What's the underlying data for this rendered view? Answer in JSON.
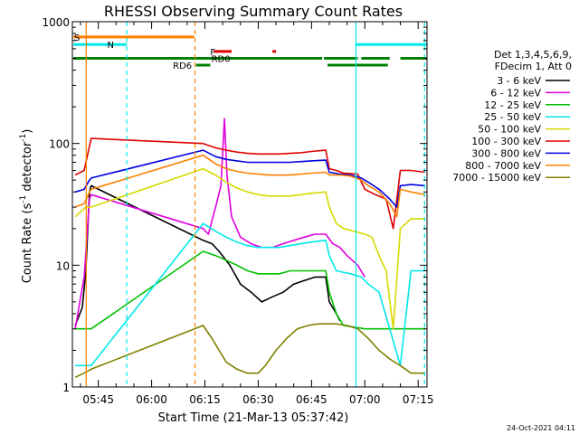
{
  "chart_data": {
    "type": "line",
    "title": "RHESSI Observing Summary Count Rates",
    "xlabel": "Start Time (21-Mar-13 05:37:42)",
    "ylabel_parts": [
      "Count Rate (s",
      "-1",
      " detector",
      "-1",
      ")"
    ],
    "y_scale": "log",
    "ylim": [
      1,
      1000
    ],
    "xlim_minutes": [
      37.7,
      137.5
    ],
    "x_ticks": [
      {
        "m": 45,
        "label": "05:45"
      },
      {
        "m": 60,
        "label": "06:00"
      },
      {
        "m": 75,
        "label": "06:15"
      },
      {
        "m": 90,
        "label": "06:30"
      },
      {
        "m": 105,
        "label": "06:45"
      },
      {
        "m": 120,
        "label": "07:00"
      },
      {
        "m": 135,
        "label": "07:15"
      }
    ],
    "y_ticks": [
      {
        "v": 1,
        "label": "1"
      },
      {
        "v": 10,
        "label": "10"
      },
      {
        "v": 100,
        "label": "100"
      },
      {
        "v": 1000,
        "label": "1000"
      }
    ],
    "legend_header": [
      "Det 1,3,4,5,6,9,",
      "FDecim 1, Att 0"
    ],
    "series": [
      {
        "name": "3 - 6 keV",
        "color": "#000000",
        "values": [
          [
            38.5,
            3.2
          ],
          [
            40.5,
            4.5
          ],
          [
            41.5,
            9
          ],
          [
            42.5,
            40
          ],
          [
            43,
            45
          ],
          [
            74.5,
            16
          ],
          [
            77,
            15
          ],
          [
            79,
            13
          ],
          [
            82,
            10
          ],
          [
            85,
            7
          ],
          [
            88,
            6
          ],
          [
            91,
            5
          ],
          [
            94,
            5.5
          ],
          [
            97,
            6
          ],
          [
            100,
            7
          ],
          [
            103,
            7.5
          ],
          [
            106,
            8
          ],
          [
            109,
            8
          ],
          [
            110,
            5
          ],
          [
            112,
            4
          ],
          [
            113,
            3.5
          ]
        ]
      },
      {
        "name": "6 - 12 keV",
        "color": "#e000e0",
        "values": [
          [
            38.5,
            3
          ],
          [
            41,
            8
          ],
          [
            42.5,
            35
          ],
          [
            43,
            38
          ],
          [
            74.5,
            20
          ],
          [
            76,
            18
          ],
          [
            78,
            30
          ],
          [
            79.5,
            45
          ],
          [
            80.5,
            160
          ],
          [
            81.2,
            55
          ],
          [
            82.5,
            25
          ],
          [
            85,
            17
          ],
          [
            88,
            15
          ],
          [
            91,
            14
          ],
          [
            94,
            14
          ],
          [
            97,
            15
          ],
          [
            100,
            16
          ],
          [
            103,
            17
          ],
          [
            106,
            18
          ],
          [
            109,
            18
          ],
          [
            111,
            15
          ],
          [
            113,
            14
          ],
          [
            115,
            12
          ],
          [
            118,
            10
          ],
          [
            120,
            8
          ]
        ]
      },
      {
        "name": "12 - 25 keV",
        "color": "#00c000",
        "values": [
          [
            38.5,
            3
          ],
          [
            41.5,
            3
          ],
          [
            43,
            3
          ],
          [
            74.5,
            13
          ],
          [
            78,
            12
          ],
          [
            81,
            11
          ],
          [
            84,
            10
          ],
          [
            87,
            9
          ],
          [
            90,
            8.5
          ],
          [
            93,
            8.5
          ],
          [
            96,
            8.5
          ],
          [
            99,
            9
          ],
          [
            102,
            9
          ],
          [
            105,
            9
          ],
          [
            109,
            9
          ],
          [
            110,
            6
          ],
          [
            112,
            4
          ],
          [
            114,
            3.2
          ],
          [
            120,
            3
          ],
          [
            125,
            3
          ],
          [
            130,
            3
          ],
          [
            137,
            3
          ]
        ]
      },
      {
        "name": "25 - 50 keV",
        "color": "#00e8e8",
        "values": [
          [
            38.5,
            1.5
          ],
          [
            41.5,
            1.5
          ],
          [
            43,
            1.5
          ],
          [
            74.5,
            22
          ],
          [
            78,
            19
          ],
          [
            81,
            17
          ],
          [
            84,
            15.5
          ],
          [
            87,
            14.5
          ],
          [
            90,
            14
          ],
          [
            93,
            14
          ],
          [
            96,
            14
          ],
          [
            99,
            14.5
          ],
          [
            102,
            15
          ],
          [
            105,
            15.5
          ],
          [
            109,
            16
          ],
          [
            110,
            12
          ],
          [
            112,
            9
          ],
          [
            116,
            8.5
          ],
          [
            119,
            8
          ],
          [
            121,
            7
          ],
          [
            124,
            6
          ],
          [
            127,
            3
          ],
          [
            130,
            1.5
          ],
          [
            133,
            9
          ],
          [
            137,
            9
          ]
        ]
      },
      {
        "name": "50 - 100 keV",
        "color": "#d8d800",
        "values": [
          [
            38.5,
            25
          ],
          [
            41.5,
            30
          ],
          [
            43,
            30
          ],
          [
            74.5,
            62
          ],
          [
            78,
            55
          ],
          [
            81,
            48
          ],
          [
            84,
            43
          ],
          [
            87,
            40
          ],
          [
            90,
            38
          ],
          [
            93,
            37
          ],
          [
            96,
            37
          ],
          [
            99,
            37
          ],
          [
            102,
            38
          ],
          [
            105,
            39
          ],
          [
            109,
            40
          ],
          [
            110,
            30
          ],
          [
            112,
            22
          ],
          [
            114,
            20
          ],
          [
            117,
            19
          ],
          [
            120,
            18
          ],
          [
            122,
            17
          ],
          [
            124,
            12
          ],
          [
            126,
            9
          ],
          [
            128,
            3
          ],
          [
            130,
            20
          ],
          [
            133,
            24
          ],
          [
            137,
            24
          ]
        ]
      },
      {
        "name": "100 - 300 keV",
        "color": "#e00000",
        "values": [
          [
            38.5,
            55
          ],
          [
            41,
            60
          ],
          [
            42.5,
            95
          ],
          [
            43,
            110
          ],
          [
            74.5,
            100
          ],
          [
            78,
            92
          ],
          [
            81,
            88
          ],
          [
            84,
            85
          ],
          [
            87,
            83
          ],
          [
            90,
            82
          ],
          [
            93,
            82
          ],
          [
            96,
            82
          ],
          [
            99,
            83
          ],
          [
            102,
            84
          ],
          [
            105,
            86
          ],
          [
            109,
            88
          ],
          [
            110,
            62
          ],
          [
            112,
            60
          ],
          [
            114,
            57
          ],
          [
            118,
            56
          ],
          [
            120,
            42
          ],
          [
            123,
            38
          ],
          [
            126,
            35
          ],
          [
            128,
            20
          ],
          [
            130,
            60
          ],
          [
            133,
            60
          ],
          [
            137,
            58
          ]
        ]
      },
      {
        "name": "300 - 800 keV",
        "color": "#0000e0",
        "values": [
          [
            38.5,
            40
          ],
          [
            41,
            42
          ],
          [
            42.5,
            50
          ],
          [
            43,
            52
          ],
          [
            74.5,
            88
          ],
          [
            78,
            78
          ],
          [
            81,
            74
          ],
          [
            84,
            72
          ],
          [
            87,
            70
          ],
          [
            90,
            70
          ],
          [
            93,
            70
          ],
          [
            96,
            70
          ],
          [
            99,
            70
          ],
          [
            102,
            71
          ],
          [
            105,
            72
          ],
          [
            109,
            73
          ],
          [
            110,
            58
          ],
          [
            113,
            56
          ],
          [
            116,
            55
          ],
          [
            119,
            52
          ],
          [
            121,
            48
          ],
          [
            124,
            42
          ],
          [
            127,
            35
          ],
          [
            129,
            30
          ],
          [
            130,
            45
          ],
          [
            133,
            46
          ],
          [
            137,
            45
          ]
        ]
      },
      {
        "name": "800 - 7000 keV",
        "color": "#ff8000",
        "values": [
          [
            38.5,
            30
          ],
          [
            41,
            32
          ],
          [
            42.5,
            40
          ],
          [
            43,
            42
          ],
          [
            74.5,
            80
          ],
          [
            78,
            68
          ],
          [
            81,
            62
          ],
          [
            84,
            59
          ],
          [
            87,
            57
          ],
          [
            90,
            56
          ],
          [
            93,
            55
          ],
          [
            96,
            55
          ],
          [
            99,
            55
          ],
          [
            102,
            56
          ],
          [
            105,
            57
          ],
          [
            109,
            58
          ],
          [
            110,
            55
          ],
          [
            113,
            55
          ],
          [
            116,
            54
          ],
          [
            119,
            50
          ],
          [
            121,
            45
          ],
          [
            124,
            40
          ],
          [
            127,
            32
          ],
          [
            129,
            25
          ],
          [
            130,
            42
          ],
          [
            133,
            40
          ],
          [
            137,
            38
          ]
        ]
      },
      {
        "name": "7000 - 15000 keV",
        "color": "#808000",
        "values": [
          [
            38.5,
            1.2
          ],
          [
            41,
            1.3
          ],
          [
            43,
            1.4
          ],
          [
            74.5,
            3.2
          ],
          [
            77,
            2.5
          ],
          [
            79,
            2
          ],
          [
            81,
            1.6
          ],
          [
            84,
            1.4
          ],
          [
            87,
            1.3
          ],
          [
            90,
            1.3
          ],
          [
            92,
            1.5
          ],
          [
            95,
            2
          ],
          [
            98,
            2.5
          ],
          [
            101,
            3
          ],
          [
            104,
            3.2
          ],
          [
            107,
            3.3
          ],
          [
            109,
            3.3
          ],
          [
            112,
            3.3
          ],
          [
            115,
            3.2
          ],
          [
            118,
            3
          ],
          [
            121,
            2.5
          ],
          [
            124,
            2
          ],
          [
            127,
            1.7
          ],
          [
            130,
            1.5
          ],
          [
            133,
            1.3
          ],
          [
            137,
            1.3
          ]
        ]
      }
    ],
    "flag_bars": [
      {
        "label": "S",
        "color": "#ff8000",
        "level": 750,
        "spans": [
          [
            38.0,
            72.0
          ]
        ],
        "label_m": 38.2
      },
      {
        "label": "N",
        "color": "#00e8e8",
        "level": 650,
        "spans": [
          [
            38.0,
            53.0
          ],
          [
            117.5,
            137.5
          ]
        ],
        "label_m": 47.5
      },
      {
        "label": "F",
        "color": "#e00000",
        "level": 570,
        "spans": [
          [
            77.5,
            82.5
          ],
          [
            94.0,
            95.0
          ]
        ],
        "label_m": 76.5
      },
      {
        "label": "RD0",
        "color": "#008000",
        "level": 500,
        "spans": [
          [
            38.0,
            108.0
          ],
          [
            108.5,
            118.0
          ],
          [
            119.0,
            127.0
          ],
          [
            130.0,
            137.5
          ]
        ],
        "label_m": 76.8
      },
      {
        "label": "RD6",
        "color": "#008000",
        "level": 440,
        "spans": [
          [
            72.5,
            76.5
          ],
          [
            109.5,
            126.5
          ]
        ],
        "label_m": 66.0
      }
    ],
    "vlines": [
      {
        "m": 41.6,
        "color": "#ff8000",
        "dash": false
      },
      {
        "m": 53.0,
        "color": "#00e8e8",
        "dash": true
      },
      {
        "m": 72.2,
        "color": "#ff8000",
        "dash": true
      },
      {
        "m": 117.5,
        "color": "#00e8e8",
        "dash": false
      },
      {
        "m": 136.8,
        "color": "#00e8e8",
        "dash": true
      }
    ],
    "timestamp": "24-Oct-2021 04:11"
  }
}
